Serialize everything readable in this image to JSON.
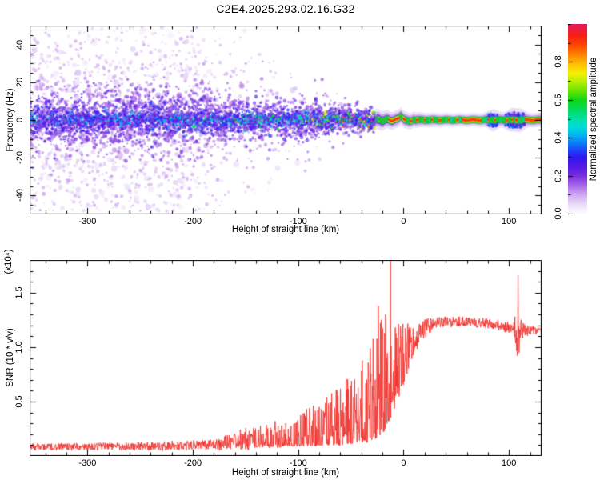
{
  "title": "C2E4.2025.293.02.16.G32",
  "chart_data": [
    {
      "type": "heatmap",
      "panel": "spectrogram",
      "title": "C2E4.2025.293.02.16.G32",
      "xlabel": "Height of straight line (km)",
      "ylabel": "Frequency (Hz)",
      "xlim": [
        -355,
        131
      ],
      "ylim": [
        -50,
        50
      ],
      "xticks": [
        -300,
        -200,
        -100,
        0,
        100
      ],
      "xtick_labels": [
        "-300",
        "-200",
        "-100",
        "0",
        "100"
      ],
      "x_minor_step": 20,
      "yticks": [
        -40,
        -20,
        0,
        20,
        40
      ],
      "ytick_labels": [
        "-40",
        "-20",
        "0",
        "20",
        "40"
      ],
      "y_minor_step": 5,
      "colorbar": {
        "label": "Normalized spectral amplitude",
        "range": [
          0,
          1
        ],
        "ticks": [
          0,
          0.2,
          0.4,
          0.6,
          0.8
        ],
        "tick_labels": [
          "0.0",
          "0.2",
          "0.4",
          "0.6",
          "0.8"
        ],
        "minor_step": 0.1
      },
      "colormap": [
        [
          0.0,
          "#ffffff"
        ],
        [
          0.05,
          "#eaddf8"
        ],
        [
          0.1,
          "#d0aaf0"
        ],
        [
          0.15,
          "#a969e8"
        ],
        [
          0.2,
          "#7a2fe0"
        ],
        [
          0.25,
          "#5518e6"
        ],
        [
          0.3,
          "#2e17f0"
        ],
        [
          0.34,
          "#1b49fa"
        ],
        [
          0.38,
          "#0a86fa"
        ],
        [
          0.42,
          "#00baf0"
        ],
        [
          0.46,
          "#00dcd8"
        ],
        [
          0.5,
          "#00e0a8"
        ],
        [
          0.55,
          "#00dc60"
        ],
        [
          0.6,
          "#10d818"
        ],
        [
          0.65,
          "#66e400"
        ],
        [
          0.7,
          "#baf000"
        ],
        [
          0.74,
          "#f2f200"
        ],
        [
          0.79,
          "#ffc000"
        ],
        [
          0.84,
          "#ff8400"
        ],
        [
          0.89,
          "#ff4600"
        ],
        [
          0.94,
          "#f81e14"
        ],
        [
          1.0,
          "#e41a5a"
        ]
      ],
      "seed": 1337,
      "noise_envelope": [
        [
          -355,
          1.0,
          22,
          50
        ],
        [
          -240,
          1.0,
          22,
          50
        ],
        [
          -195,
          0.95,
          21,
          50
        ],
        [
          -175,
          0.45,
          18,
          46
        ],
        [
          -150,
          0.3,
          16,
          42
        ],
        [
          -120,
          0.22,
          14,
          36
        ],
        [
          -95,
          0.15,
          12,
          28
        ],
        [
          -75,
          0.09,
          10,
          22
        ],
        [
          -55,
          0.05,
          8,
          16
        ],
        [
          -38,
          0.02,
          6,
          11
        ],
        [
          -24,
          0.0,
          5,
          8
        ],
        [
          131,
          0.0,
          4,
          7
        ]
      ],
      "band_envelope": [
        [
          -355,
          13,
          0.34
        ],
        [
          -260,
          13,
          0.36
        ],
        [
          -200,
          12.5,
          0.4
        ],
        [
          -150,
          12,
          0.45
        ],
        [
          -110,
          11,
          0.48
        ],
        [
          -80,
          9.5,
          0.52
        ],
        [
          -60,
          8.5,
          0.55
        ],
        [
          -45,
          7.5,
          0.6
        ],
        [
          -32,
          6.5,
          0.64
        ],
        [
          -24,
          5.5,
          0.66
        ],
        [
          -15,
          4.8,
          0.7
        ],
        [
          0,
          4.6,
          0.72
        ],
        [
          20,
          3.8,
          0.7
        ],
        [
          50,
          3.5,
          0.7
        ],
        [
          75,
          3.6,
          0.7
        ],
        [
          131,
          3.8,
          0.73
        ]
      ],
      "smooth_band_from_km": -28,
      "band_bump": {
        "km": -2.5,
        "amplitude_hz": 2.4,
        "width": 5
      },
      "blob_bulges": [
        [
          85,
          30,
          0.6
        ],
        [
          103,
          40,
          0.7
        ],
        [
          112,
          20,
          0.5
        ]
      ],
      "red_segments": [
        [
          -66,
          -65
        ],
        [
          -57,
          -56
        ],
        [
          -48,
          -47
        ],
        [
          -41,
          -40
        ],
        [
          -35,
          -33
        ],
        [
          -29,
          -28
        ],
        [
          -24,
          -23
        ],
        [
          -15,
          -4
        ],
        [
          -1,
          2
        ],
        [
          6,
          8
        ],
        [
          12,
          14
        ],
        [
          19,
          21
        ],
        [
          26,
          28
        ],
        [
          33,
          36
        ],
        [
          42,
          44
        ],
        [
          50,
          52
        ],
        [
          55,
          74
        ],
        [
          79,
          81
        ],
        [
          86,
          88
        ],
        [
          97,
          99
        ],
        [
          102,
          104
        ],
        [
          106,
          108
        ],
        [
          115,
          131
        ]
      ]
    },
    {
      "type": "line",
      "panel": "snr",
      "color": "#f03430",
      "xlabel": "Height of straight line (km)",
      "ylabel": "SNR (10 * v/v)",
      "ylabel_exp": "(x10⁴)",
      "xlim": [
        -355,
        131
      ],
      "ylim": [
        0,
        1.8
      ],
      "xticks": [
        -300,
        -200,
        -100,
        0,
        100
      ],
      "xtick_labels": [
        "-300",
        "-200",
        "-100",
        "0",
        "100"
      ],
      "x_minor_step": 20,
      "yticks": [
        0.5,
        1.0,
        1.5
      ],
      "ytick_labels": [
        "0.5",
        "1.0",
        "1.5"
      ],
      "y_minor_step": 0.1,
      "seed": 777,
      "step_km": 0.33,
      "envelope": [
        [
          -355,
          0.06,
          0.11
        ],
        [
          -300,
          0.06,
          0.11
        ],
        [
          -230,
          0.06,
          0.12
        ],
        [
          -185,
          0.07,
          0.14
        ],
        [
          -165,
          0.07,
          0.18
        ],
        [
          -145,
          0.08,
          0.25
        ],
        [
          -125,
          0.08,
          0.32
        ],
        [
          -105,
          0.09,
          0.38
        ],
        [
          -88,
          0.09,
          0.46
        ],
        [
          -72,
          0.1,
          0.56
        ],
        [
          -58,
          0.1,
          0.66
        ],
        [
          -46,
          0.12,
          0.82
        ],
        [
          -36,
          0.12,
          0.96
        ],
        [
          -28,
          0.15,
          1.1
        ],
        [
          -20,
          0.2,
          1.28
        ],
        [
          -14,
          0.3,
          1.38
        ],
        [
          -8,
          0.45,
          1.32
        ],
        [
          -2,
          0.6,
          1.27
        ],
        [
          3,
          0.75,
          1.24
        ],
        [
          8,
          0.9,
          1.24
        ],
        [
          14,
          1.0,
          1.23
        ],
        [
          20,
          1.1,
          1.24
        ],
        [
          28,
          1.17,
          1.26
        ],
        [
          40,
          1.2,
          1.27
        ],
        [
          60,
          1.2,
          1.27
        ],
        [
          80,
          1.18,
          1.25
        ],
        [
          95,
          1.15,
          1.23
        ],
        [
          104,
          1.1,
          1.2
        ],
        [
          107,
          0.95,
          1.4
        ],
        [
          110,
          1.05,
          1.3
        ],
        [
          114,
          1.12,
          1.2
        ],
        [
          131,
          1.12,
          1.18
        ]
      ],
      "spikes": [
        [
          -12.6,
          1.79
        ],
        [
          -24,
          1.38
        ],
        [
          -17,
          1.3
        ],
        [
          108.6,
          1.66
        ],
        [
          108.0,
          0.92
        ],
        [
          109.6,
          0.95
        ]
      ]
    }
  ]
}
